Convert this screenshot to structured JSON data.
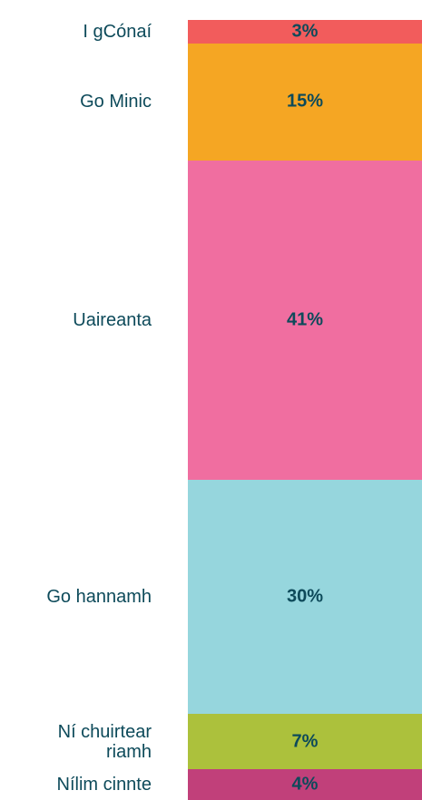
{
  "chart_data": {
    "type": "stacked-column",
    "categories": [
      "I gCónaí",
      "Go Minic",
      "Uaireanta",
      "Go hannamh",
      "Ní chuirtear riamh",
      "Nílim cinnte"
    ],
    "values": [
      3,
      15,
      41,
      30,
      7,
      4
    ],
    "value_labels": [
      "3%",
      "15%",
      "41%",
      "30%",
      "7%",
      "4%"
    ],
    "colors": [
      "#f25c5c",
      "#f5a623",
      "#f06ea0",
      "#96d6dd",
      "#acc13c",
      "#c1407a"
    ]
  }
}
